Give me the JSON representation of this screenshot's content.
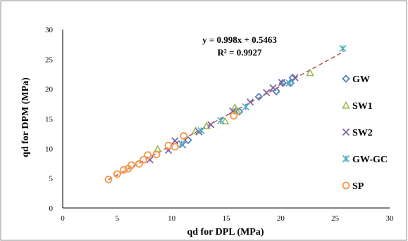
{
  "chart_data": {
    "type": "scatter",
    "xlabel": "qd for DPL (MPa)",
    "ylabel": "qd for DPM (MPa)",
    "xlim": [
      0,
      30
    ],
    "ylim": [
      0,
      30
    ],
    "x_ticks": [
      "0",
      "5",
      "10",
      "15",
      "20",
      "25",
      "30"
    ],
    "y_ticks": [
      "0",
      "5",
      "10",
      "15",
      "20",
      "25",
      "30"
    ],
    "grid": false,
    "legend_position": "right",
    "trendline": {
      "equation": "y = 0.998x + 0.5463",
      "r_squared": "R² = 0.9927",
      "slope": 0.998,
      "intercept": 0.5463,
      "x_range": [
        4.2,
        25.8
      ],
      "color": "#c0504d",
      "style": "dashed"
    },
    "series": [
      {
        "name": "GW",
        "marker": "diamond",
        "color": "#4f81bd",
        "points": [
          [
            11.5,
            11.4
          ],
          [
            18.0,
            18.7
          ],
          [
            19.6,
            19.6
          ],
          [
            20.2,
            21.0
          ],
          [
            21.1,
            21.9
          ],
          [
            20.9,
            21.0
          ],
          [
            16.2,
            16.2
          ]
        ]
      },
      {
        "name": "SW1",
        "marker": "triangle",
        "color": "#9bbb59",
        "points": [
          [
            8.7,
            9.9
          ],
          [
            12.2,
            13.0
          ],
          [
            13.2,
            13.8
          ],
          [
            14.9,
            14.6
          ],
          [
            15.8,
            16.9
          ],
          [
            16.0,
            16.3
          ],
          [
            22.7,
            22.7
          ]
        ]
      },
      {
        "name": "SW2",
        "marker": "x",
        "color": "#8064a2",
        "points": [
          [
            8.0,
            8.1
          ],
          [
            9.7,
            9.7
          ],
          [
            10.3,
            11.3
          ],
          [
            11.0,
            10.6
          ],
          [
            12.5,
            12.8
          ],
          [
            13.6,
            14.0
          ],
          [
            15.6,
            16.3
          ],
          [
            17.2,
            17.8
          ],
          [
            18.7,
            19.4
          ],
          [
            19.3,
            20.2
          ],
          [
            20.1,
            21.1
          ],
          [
            21.3,
            21.9
          ]
        ]
      },
      {
        "name": "GW-GC",
        "marker": "asterisk",
        "color": "#4bacc6",
        "points": [
          [
            10.9,
            10.8
          ],
          [
            12.7,
            13.0
          ],
          [
            14.5,
            14.7
          ],
          [
            16.8,
            17.0
          ],
          [
            20.8,
            21.0
          ],
          [
            25.7,
            26.8
          ]
        ]
      },
      {
        "name": "SP",
        "marker": "circle",
        "color": "#f79646",
        "points": [
          [
            4.2,
            4.8
          ],
          [
            5.0,
            5.7
          ],
          [
            5.6,
            6.4
          ],
          [
            6.0,
            6.6
          ],
          [
            6.3,
            7.2
          ],
          [
            7.0,
            7.4
          ],
          [
            7.4,
            8.1
          ],
          [
            7.8,
            8.9
          ],
          [
            8.6,
            9.0
          ],
          [
            9.7,
            10.5
          ],
          [
            10.3,
            10.3
          ],
          [
            11.1,
            12.1
          ],
          [
            15.7,
            15.5
          ]
        ]
      }
    ]
  }
}
